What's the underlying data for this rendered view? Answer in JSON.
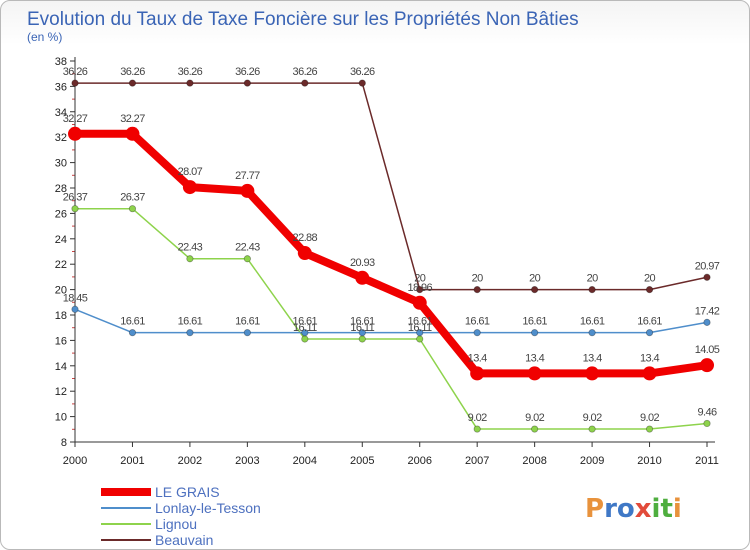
{
  "colors": {
    "title": "#3a64b5",
    "axis": "#333333",
    "grid": "#d6d6d6"
  },
  "logo": {
    "letters": [
      {
        "ch": "P",
        "color": "#e8923c"
      },
      {
        "ch": "r",
        "color": "#3f78c6"
      },
      {
        "ch": "o",
        "color": "#3f78c6"
      },
      {
        "ch": "x",
        "color": "#e24b3a"
      },
      {
        "ch": "i",
        "color": "#4fae3f"
      },
      {
        "ch": "t",
        "color": "#4fae3f"
      },
      {
        "ch": "i",
        "color": "#e8923c"
      }
    ]
  },
  "chart_data": {
    "type": "line",
    "title": "Evolution du Taux de Taxe Foncière sur les Propriétés Non Bâties",
    "subtitle": "(en %)",
    "xlabel": "",
    "ylabel": "",
    "x": [
      "2000",
      "2001",
      "2002",
      "2003",
      "2004",
      "2005",
      "2006",
      "2007",
      "2008",
      "2009",
      "2010",
      "2011"
    ],
    "ylim": [
      8,
      38
    ],
    "yticks": [
      8,
      10,
      12,
      14,
      16,
      18,
      20,
      22,
      24,
      26,
      28,
      30,
      32,
      34,
      36,
      38
    ],
    "grid": false,
    "legend_position": "bottom-left",
    "series": [
      {
        "name": "LE GRAIS",
        "color": "#f00000",
        "values": [
          32.27,
          32.27,
          28.07,
          27.77,
          22.88,
          20.93,
          18.96,
          13.4,
          13.4,
          13.4,
          13.4,
          14.05
        ],
        "labels": [
          "32.27",
          "32.27",
          "28.07",
          "27.77",
          "22.88",
          "20.93",
          "18.96",
          "13.4",
          "13.4",
          "13.4",
          "13.4",
          "14.05"
        ]
      },
      {
        "name": "Lonlay-le-Tesson",
        "color": "#4f8ecb",
        "values": [
          18.45,
          16.61,
          16.61,
          16.61,
          16.61,
          16.61,
          16.61,
          16.61,
          16.61,
          16.61,
          16.61,
          17.42
        ],
        "labels": [
          "18.45",
          "16.61",
          "16.61",
          "16.61",
          "16.61",
          "16.61",
          "16.61",
          "16.61",
          "16.61",
          "16.61",
          "16.61",
          "17.42"
        ]
      },
      {
        "name": "Lignou",
        "color": "#8ed34c",
        "values": [
          26.37,
          26.37,
          22.43,
          22.43,
          16.11,
          16.11,
          16.11,
          9.02,
          9.02,
          9.02,
          9.02,
          9.46
        ],
        "labels": [
          "26.37",
          "26.37",
          "22.43",
          "22.43",
          "16.11",
          "16.11",
          "16.11",
          "9.02",
          "9.02",
          "9.02",
          "9.02",
          "9.46"
        ]
      },
      {
        "name": "Beauvain",
        "color": "#6b2a2a",
        "values": [
          36.26,
          36.26,
          36.26,
          36.26,
          36.26,
          36.26,
          20,
          20,
          20,
          20,
          20,
          20.97
        ],
        "labels": [
          "36.26",
          "36.26",
          "36.26",
          "36.26",
          "36.26",
          "36.26",
          "20",
          "20",
          "20",
          "20",
          "20",
          "20.97"
        ]
      }
    ]
  }
}
